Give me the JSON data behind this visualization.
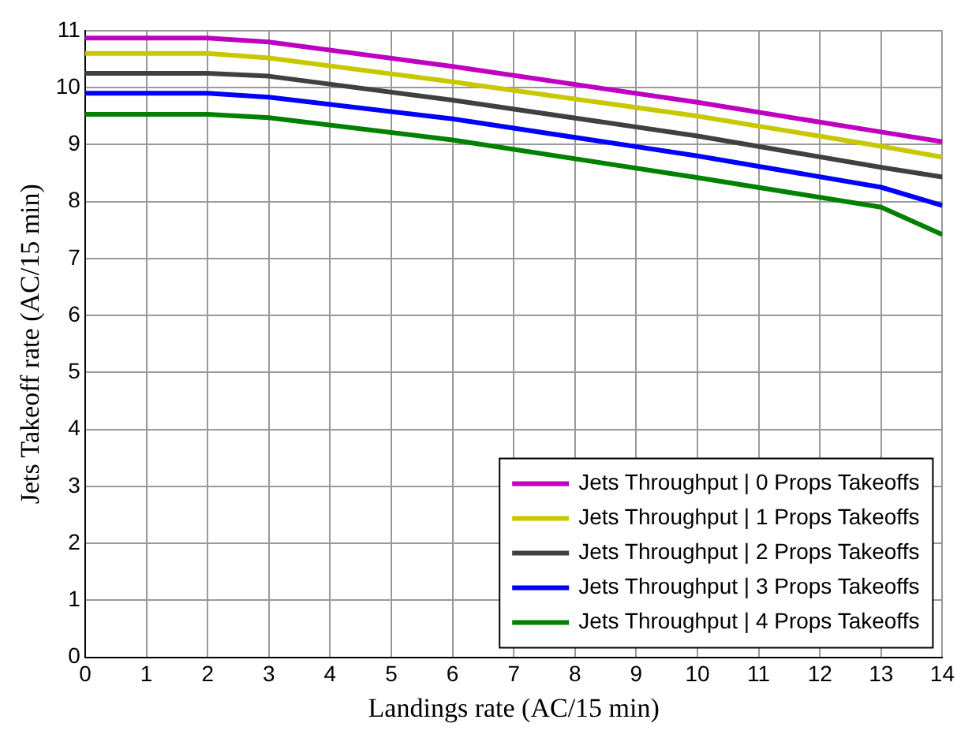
{
  "chart_data": {
    "type": "line",
    "xlabel": "Landings rate (AC/15 min)",
    "ylabel": "Jets Takeoff rate (AC/15 min)",
    "x": [
      0,
      2,
      3,
      6,
      10,
      13,
      14
    ],
    "xlim": [
      0,
      14
    ],
    "xticks": [
      0,
      1,
      2,
      3,
      4,
      5,
      6,
      7,
      8,
      9,
      10,
      11,
      12,
      13,
      14
    ],
    "ylim": [
      0,
      11
    ],
    "yticks": [
      0,
      1,
      2,
      3,
      4,
      5,
      6,
      7,
      8,
      9,
      10,
      11
    ],
    "grid": true,
    "legend": "bottom right",
    "line_style": "solid",
    "marker": "none",
    "series": [
      {
        "name": "Jets Throughput | 0 Props Takeoffs",
        "color": "#c000c0",
        "values": [
          10.87,
          10.87,
          10.8,
          10.37,
          9.74,
          9.22,
          9.05
        ]
      },
      {
        "name": "Jets Throughput | 1 Props Takeoffs",
        "color": "#c8c800",
        "values": [
          10.6,
          10.6,
          10.52,
          10.1,
          9.5,
          8.97,
          8.78
        ]
      },
      {
        "name": "Jets Throughput | 2 Props Takeoffs",
        "color": "#404040",
        "values": [
          10.25,
          10.25,
          10.2,
          9.78,
          9.15,
          8.6,
          8.43
        ]
      },
      {
        "name": "Jets Throughput | 3 Props Takeoffs",
        "color": "#0000ff",
        "values": [
          9.9,
          9.9,
          9.83,
          9.45,
          8.8,
          8.25,
          7.93
        ]
      },
      {
        "name": "Jets Throughput | 4 Props Takeoffs",
        "color": "#008000",
        "values": [
          9.53,
          9.53,
          9.47,
          9.08,
          8.42,
          7.9,
          7.42
        ]
      }
    ]
  }
}
